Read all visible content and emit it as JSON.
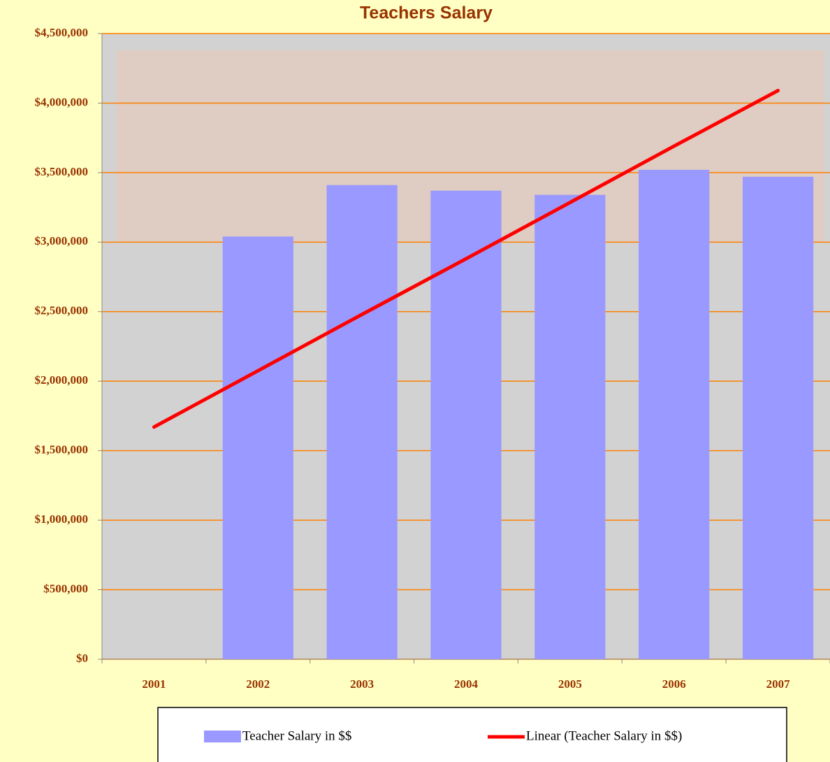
{
  "chart_data": {
    "type": "bar",
    "title": "Teachers Salary",
    "categories": [
      "2001",
      "2002",
      "2003",
      "2004",
      "2005",
      "2006",
      "2007"
    ],
    "series": [
      {
        "name": "Teacher Salary in $$",
        "color": "#9999ff",
        "values": [
          null,
          3040000,
          3410000,
          3370000,
          3340000,
          3520000,
          3470000
        ]
      },
      {
        "name": "Linear (Teacher Salary in $$)",
        "type": "line",
        "color": "#ff0000",
        "values": [
          1670000,
          2075000,
          2480000,
          2880000,
          3285000,
          3690000,
          4090000
        ]
      }
    ],
    "ylim": [
      0,
      4500000
    ],
    "yticks": [
      {
        "value": 0,
        "label": "$0"
      },
      {
        "value": 500000,
        "label": "$500,000"
      },
      {
        "value": 1000000,
        "label": "$1,000,000"
      },
      {
        "value": 1500000,
        "label": "$1,500,000"
      },
      {
        "value": 2000000,
        "label": "$2,000,000"
      },
      {
        "value": 2500000,
        "label": "$2,500,000"
      },
      {
        "value": 3000000,
        "label": "$3,000,000"
      },
      {
        "value": 3500000,
        "label": "$3,500,000"
      },
      {
        "value": 4000000,
        "label": "$4,000,000"
      },
      {
        "value": 4500000,
        "label": "$4,500,000"
      }
    ],
    "grid": true,
    "grid_color": "#ff8000",
    "legend": "bottom"
  }
}
